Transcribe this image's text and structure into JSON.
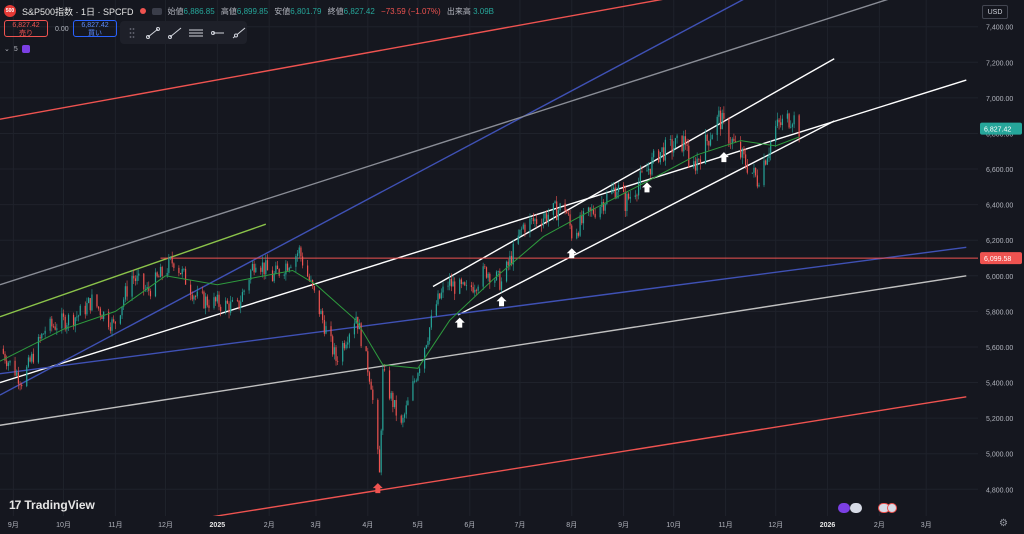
{
  "header": {
    "symbol": "S&P500指数 · 1日 · SPCFD",
    "logo_text": "500",
    "ohlc": [
      {
        "label": "始値",
        "value": "6,886.85"
      },
      {
        "label": "高値",
        "value": "6,899.85"
      },
      {
        "label": "安値",
        "value": "6,801.79"
      },
      {
        "label": "終値",
        "value": "6,827.42"
      }
    ],
    "change": "−73.59 (−1.07%)",
    "volume_label": "出来高",
    "volume_value": "3.09B"
  },
  "trade": {
    "sell_price": "6,827.42",
    "sell_label": "売り",
    "spread": "0.00",
    "buy_price": "6,827.42",
    "buy_label": "買い"
  },
  "toolbar": {
    "icons": [
      "drag-handle-icon",
      "trend-line-icon",
      "ray-icon",
      "parallel-channel-icon",
      "horizontal-ray-icon",
      "extended-line-icon"
    ]
  },
  "indicator": {
    "count": "5"
  },
  "currency": "USD",
  "brand": "TradingView",
  "colors": {
    "up": "#26a69a",
    "down": "#ef5350",
    "price_label": "#26a69a",
    "level_label": "#ef5350",
    "ma_line": "#2e9b3e"
  },
  "chart_data": {
    "type": "candlestick",
    "title": "S&P500指数 · 1日 · SPCFD",
    "y_axis": {
      "range": [
        4650,
        7550
      ],
      "ticks": [
        4800,
        5000,
        5200,
        5400,
        5600,
        5800,
        6000,
        6200,
        6400,
        6600,
        6800,
        7000,
        7200,
        7400
      ],
      "tick_labels": [
        "4,800.00",
        "5,000.00",
        "5,200.00",
        "5,400.00",
        "5,600.00",
        "5,800.00",
        "6,000.00",
        "6,200.00",
        "6,400.00",
        "6,600.00",
        "6,800.00",
        "7,000.00",
        "7,200.00",
        "7,400.00"
      ]
    },
    "x_axis": {
      "range": [
        "2024-08-24",
        "2026-04-01"
      ],
      "ticks": [
        "2024-09-01",
        "2024-10-01",
        "2024-11-01",
        "2024-12-01",
        "2025-01-01",
        "2025-02-01",
        "2025-03-01",
        "2025-04-01",
        "2025-05-01",
        "2025-06-01",
        "2025-07-01",
        "2025-08-01",
        "2025-09-01",
        "2025-10-01",
        "2025-11-01",
        "2025-12-01",
        "2026-01-01",
        "2026-02-01",
        "2026-03-01"
      ],
      "tick_labels": [
        "9月",
        "10月",
        "11月",
        "12月",
        "2025",
        "2月",
        "3月",
        "4月",
        "5月",
        "6月",
        "7月",
        "8月",
        "9月",
        "10月",
        "11月",
        "12月",
        "2026",
        "2月",
        "3月"
      ]
    },
    "price_path": [
      [
        "2024-08-24",
        5590
      ],
      [
        "2024-09-06",
        5410
      ],
      [
        "2024-09-20",
        5700
      ],
      [
        "2024-10-10",
        5780
      ],
      [
        "2024-10-18",
        5860
      ],
      [
        "2024-10-31",
        5720
      ],
      [
        "2024-11-11",
        6000
      ],
      [
        "2024-11-20",
        5910
      ],
      [
        "2024-12-06",
        6090
      ],
      [
        "2024-12-20",
        5870
      ],
      [
        "2025-01-13",
        5820
      ],
      [
        "2025-01-24",
        6100
      ],
      [
        "2025-02-03",
        5990
      ],
      [
        "2025-02-19",
        6140
      ],
      [
        "2025-03-13",
        5530
      ],
      [
        "2025-03-25",
        5780
      ],
      [
        "2025-04-03",
        5400
      ],
      [
        "2025-04-08",
        4880
      ],
      [
        "2025-04-10",
        5450
      ],
      [
        "2025-04-21",
        5150
      ],
      [
        "2025-05-12",
        5840
      ],
      [
        "2025-05-19",
        5960
      ],
      [
        "2025-05-30",
        5910
      ],
      [
        "2025-06-11",
        6030
      ],
      [
        "2025-06-20",
        5960
      ],
      [
        "2025-07-03",
        6280
      ],
      [
        "2025-07-28",
        6390
      ],
      [
        "2025-08-01",
        6240
      ],
      [
        "2025-08-28",
        6500
      ],
      [
        "2025-09-02",
        6410
      ],
      [
        "2025-09-22",
        6690
      ],
      [
        "2025-10-09",
        6760
      ],
      [
        "2025-10-10",
        6560
      ],
      [
        "2025-10-28",
        6890
      ],
      [
        "2025-11-07",
        6720
      ],
      [
        "2025-11-20",
        6540
      ],
      [
        "2025-12-01",
        6830
      ],
      [
        "2025-12-11",
        6900
      ],
      [
        "2025-12-15",
        6827.42
      ]
    ],
    "moving_average_path": [
      [
        "2024-08-24",
        5520
      ],
      [
        "2024-10-01",
        5700
      ],
      [
        "2024-11-01",
        5800
      ],
      [
        "2024-12-01",
        6000
      ],
      [
        "2025-01-01",
        5950
      ],
      [
        "2025-02-15",
        6030
      ],
      [
        "2025-03-01",
        5950
      ],
      [
        "2025-03-25",
        5750
      ],
      [
        "2025-04-10",
        5500
      ],
      [
        "2025-05-01",
        5480
      ],
      [
        "2025-05-20",
        5750
      ],
      [
        "2025-06-15",
        5980
      ],
      [
        "2025-07-15",
        6220
      ],
      [
        "2025-08-15",
        6380
      ],
      [
        "2025-09-15",
        6530
      ],
      [
        "2025-10-15",
        6680
      ],
      [
        "2025-11-10",
        6760
      ],
      [
        "2025-12-01",
        6730
      ],
      [
        "2025-12-15",
        6780
      ]
    ],
    "trend_lines": [
      {
        "color": "#ffffff",
        "points": [
          [
            "2024-08-24",
            5400
          ],
          [
            "2026-03-25",
            7100
          ]
        ]
      },
      {
        "color": "#ffffff",
        "points": [
          [
            "2025-05-10",
            5940
          ],
          [
            "2026-01-05",
            7220
          ]
        ]
      },
      {
        "color": "#ffffff",
        "points": [
          [
            "2025-05-25",
            5780
          ],
          [
            "2026-01-05",
            6870
          ]
        ]
      },
      {
        "color": "#c0c0c0",
        "points": [
          [
            "2024-08-24",
            5160
          ],
          [
            "2026-03-25",
            6000
          ]
        ]
      },
      {
        "color": "#8bc34a",
        "points": [
          [
            "2024-08-24",
            5770
          ],
          [
            "2025-01-30",
            6290
          ]
        ]
      },
      {
        "color": "#ef5350",
        "points": [
          [
            "2024-08-24",
            6880
          ],
          [
            "2025-11-20",
            7650
          ]
        ]
      },
      {
        "color": "#ef5350",
        "points": [
          [
            "2024-11-15",
            4580
          ],
          [
            "2026-03-25",
            5320
          ]
        ]
      },
      {
        "color": "#3f51b5",
        "points": [
          [
            "2024-08-24",
            5450
          ],
          [
            "2026-03-25",
            6160
          ]
        ]
      },
      {
        "color": "#3f51b5",
        "points": [
          [
            "2024-08-24",
            5330
          ],
          [
            "2025-12-01",
            7650
          ]
        ]
      },
      {
        "color": "#8a8d96",
        "points": [
          [
            "2024-08-24",
            5950
          ],
          [
            "2026-03-10",
            7650
          ]
        ]
      }
    ],
    "horizontal_level": {
      "value": 6099.58,
      "label": "6,099.58",
      "start": "2024-11-28"
    },
    "last_price": {
      "value": 6827.42,
      "label": "6,827.42"
    },
    "markers": [
      {
        "date": "2025-04-07",
        "price": 4880,
        "direction": "up",
        "color": "#ef5350"
      },
      {
        "date": "2025-05-26",
        "price": 5810,
        "direction": "up",
        "color": "#ffffff"
      },
      {
        "date": "2025-06-20",
        "price": 5930,
        "direction": "up",
        "color": "#ffffff"
      },
      {
        "date": "2025-08-01",
        "price": 6200,
        "direction": "up",
        "color": "#ffffff"
      },
      {
        "date": "2025-09-15",
        "price": 6570,
        "direction": "up",
        "color": "#ffffff"
      },
      {
        "date": "2025-10-31",
        "price": 6740,
        "direction": "up",
        "color": "#ffffff"
      }
    ]
  }
}
